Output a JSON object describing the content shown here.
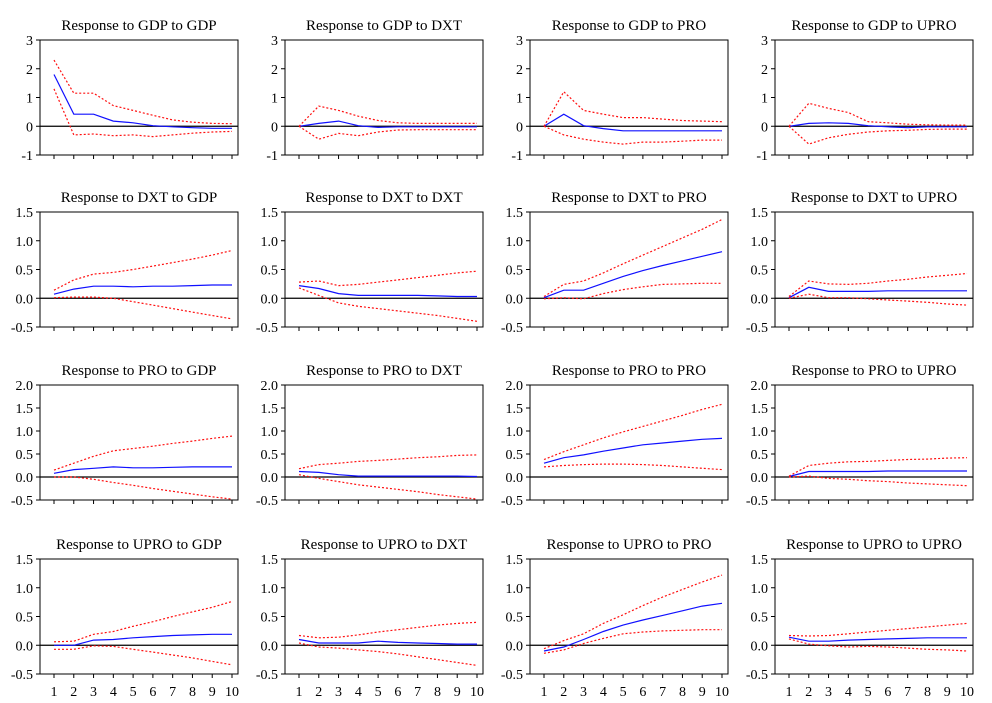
{
  "figure": {
    "rows": [
      {
        "ylim": [
          -1,
          3
        ],
        "yticks": [
          "-1",
          "0",
          "1",
          "2",
          "3"
        ],
        "ytick_values": [
          -1,
          0,
          1,
          2,
          3
        ]
      },
      {
        "ylim": [
          -0.5,
          1.5
        ],
        "yticks": [
          "-0.5",
          "0.0",
          "0.5",
          "1.0",
          "1.5"
        ],
        "ytick_values": [
          -0.5,
          0,
          0.5,
          1.0,
          1.5
        ]
      },
      {
        "ylim": [
          -0.5,
          2.0
        ],
        "yticks": [
          "-0.5",
          "0.0",
          "0.5",
          "1.0",
          "1.5",
          "2.0"
        ],
        "ytick_values": [
          -0.5,
          0,
          0.5,
          1.0,
          1.5,
          2.0
        ]
      },
      {
        "ylim": [
          -0.5,
          1.5
        ],
        "yticks": [
          "-0.5",
          "0.0",
          "0.5",
          "1.0",
          "1.5"
        ],
        "ytick_values": [
          -0.5,
          0,
          0.5,
          1.0,
          1.5
        ]
      }
    ],
    "xticks": [
      "1",
      "2",
      "3",
      "4",
      "5",
      "6",
      "7",
      "8",
      "9",
      "10"
    ],
    "colors": {
      "response": "#1010ff",
      "band": "#ff1010",
      "axis": "#000000"
    }
  },
  "chart_data": [
    {
      "type": "line",
      "title": "Response to GDP to GDP",
      "x": [
        1,
        2,
        3,
        4,
        5,
        6,
        7,
        8,
        9,
        10
      ],
      "xlim": [
        1,
        10
      ],
      "ylim": [
        -1,
        3
      ],
      "series": [
        {
          "values": [
            1.8,
            0.42,
            0.42,
            0.18,
            0.12,
            0.02,
            -0.02,
            -0.05,
            -0.07,
            -0.07
          ]
        },
        {
          "values": [
            2.3,
            1.15,
            1.15,
            0.72,
            0.55,
            0.38,
            0.22,
            0.14,
            0.1,
            0.09
          ]
        },
        {
          "values": [
            1.3,
            -0.3,
            -0.27,
            -0.33,
            -0.3,
            -0.36,
            -0.3,
            -0.24,
            -0.2,
            -0.18
          ]
        }
      ]
    },
    {
      "type": "line",
      "title": "Response to GDP to DXT",
      "x": [
        1,
        2,
        3,
        4,
        5,
        6,
        7,
        8,
        9,
        10
      ],
      "xlim": [
        1,
        10
      ],
      "ylim": [
        -1,
        3
      ],
      "series": [
        {
          "values": [
            0.0,
            0.1,
            0.18,
            0.02,
            -0.04,
            -0.02,
            -0.02,
            -0.02,
            -0.02,
            -0.02
          ]
        },
        {
          "values": [
            0.0,
            0.7,
            0.55,
            0.35,
            0.2,
            0.12,
            0.1,
            0.1,
            0.1,
            0.1
          ]
        },
        {
          "values": [
            0.0,
            -0.45,
            -0.25,
            -0.33,
            -0.2,
            -0.13,
            -0.12,
            -0.12,
            -0.12,
            -0.12
          ]
        }
      ]
    },
    {
      "type": "line",
      "title": "Response to GDP to PRO",
      "x": [
        1,
        2,
        3,
        4,
        5,
        6,
        7,
        8,
        9,
        10
      ],
      "xlim": [
        1,
        10
      ],
      "ylim": [
        -1,
        3
      ],
      "series": [
        {
          "values": [
            0.0,
            0.42,
            0.02,
            -0.08,
            -0.16,
            -0.16,
            -0.16,
            -0.16,
            -0.16,
            -0.16
          ]
        },
        {
          "values": [
            0.0,
            1.2,
            0.55,
            0.42,
            0.3,
            0.3,
            0.25,
            0.2,
            0.18,
            0.16
          ]
        },
        {
          "values": [
            0.0,
            -0.3,
            -0.45,
            -0.55,
            -0.62,
            -0.55,
            -0.55,
            -0.52,
            -0.48,
            -0.48
          ]
        }
      ]
    },
    {
      "type": "line",
      "title": "Response to GDP to UPRO",
      "x": [
        1,
        2,
        3,
        4,
        5,
        6,
        7,
        8,
        9,
        10
      ],
      "xlim": [
        1,
        10
      ],
      "ylim": [
        -1,
        3
      ],
      "series": [
        {
          "values": [
            0.0,
            0.1,
            0.12,
            0.1,
            0.02,
            -0.02,
            -0.05,
            -0.02,
            -0.02,
            -0.02
          ]
        },
        {
          "values": [
            0.0,
            0.8,
            0.62,
            0.48,
            0.16,
            0.12,
            0.07,
            0.05,
            0.04,
            0.04
          ]
        },
        {
          "values": [
            0.0,
            -0.62,
            -0.4,
            -0.28,
            -0.2,
            -0.16,
            -0.14,
            -0.11,
            -0.1,
            -0.1
          ]
        }
      ]
    },
    {
      "type": "line",
      "title": "Response to DXT to GDP",
      "x": [
        1,
        2,
        3,
        4,
        5,
        6,
        7,
        8,
        9,
        10
      ],
      "xlim": [
        1,
        10
      ],
      "ylim": [
        -0.5,
        1.5
      ],
      "series": [
        {
          "values": [
            0.07,
            0.16,
            0.21,
            0.21,
            0.2,
            0.21,
            0.21,
            0.22,
            0.23,
            0.23
          ]
        },
        {
          "values": [
            0.14,
            0.32,
            0.42,
            0.45,
            0.5,
            0.56,
            0.62,
            0.68,
            0.75,
            0.83
          ]
        },
        {
          "values": [
            0.01,
            0.02,
            0.02,
            0.0,
            -0.06,
            -0.12,
            -0.18,
            -0.24,
            -0.3,
            -0.36
          ]
        }
      ]
    },
    {
      "type": "line",
      "title": "Response to DXT to DXT",
      "x": [
        1,
        2,
        3,
        4,
        5,
        6,
        7,
        8,
        9,
        10
      ],
      "xlim": [
        1,
        10
      ],
      "ylim": [
        -0.5,
        1.5
      ],
      "series": [
        {
          "values": [
            0.22,
            0.17,
            0.08,
            0.05,
            0.05,
            0.05,
            0.05,
            0.04,
            0.03,
            0.03
          ]
        },
        {
          "values": [
            0.28,
            0.3,
            0.22,
            0.24,
            0.28,
            0.32,
            0.36,
            0.4,
            0.44,
            0.47
          ]
        },
        {
          "values": [
            0.18,
            0.05,
            -0.08,
            -0.14,
            -0.18,
            -0.22,
            -0.26,
            -0.3,
            -0.35,
            -0.4
          ]
        }
      ]
    },
    {
      "type": "line",
      "title": "Response to DXT to PRO",
      "x": [
        1,
        2,
        3,
        4,
        5,
        6,
        7,
        8,
        9,
        10
      ],
      "xlim": [
        1,
        10
      ],
      "ylim": [
        -0.5,
        1.5
      ],
      "series": [
        {
          "values": [
            0.01,
            0.14,
            0.14,
            0.26,
            0.38,
            0.48,
            0.57,
            0.65,
            0.73,
            0.81
          ]
        },
        {
          "values": [
            0.03,
            0.24,
            0.3,
            0.44,
            0.6,
            0.75,
            0.9,
            1.05,
            1.2,
            1.37
          ]
        },
        {
          "values": [
            -0.01,
            0.01,
            -0.01,
            0.08,
            0.15,
            0.2,
            0.24,
            0.25,
            0.26,
            0.26
          ]
        }
      ]
    },
    {
      "type": "line",
      "title": "Response to DXT to UPRO",
      "x": [
        1,
        2,
        3,
        4,
        5,
        6,
        7,
        8,
        9,
        10
      ],
      "xlim": [
        1,
        10
      ],
      "ylim": [
        -0.5,
        1.5
      ],
      "series": [
        {
          "values": [
            0.01,
            0.19,
            0.12,
            0.12,
            0.12,
            0.13,
            0.13,
            0.13,
            0.13,
            0.13
          ]
        },
        {
          "values": [
            0.03,
            0.3,
            0.25,
            0.24,
            0.26,
            0.3,
            0.33,
            0.37,
            0.4,
            0.43
          ]
        },
        {
          "values": [
            0.0,
            0.07,
            0.01,
            0.01,
            -0.01,
            -0.03,
            -0.05,
            -0.07,
            -0.1,
            -0.12
          ]
        }
      ]
    },
    {
      "type": "line",
      "title": "Response to PRO to GDP",
      "x": [
        1,
        2,
        3,
        4,
        5,
        6,
        7,
        8,
        9,
        10
      ],
      "xlim": [
        1,
        10
      ],
      "ylim": [
        -0.5,
        2.0
      ],
      "series": [
        {
          "values": [
            0.08,
            0.16,
            0.19,
            0.22,
            0.2,
            0.2,
            0.21,
            0.22,
            0.22,
            0.22
          ]
        },
        {
          "values": [
            0.15,
            0.3,
            0.45,
            0.57,
            0.62,
            0.67,
            0.73,
            0.78,
            0.84,
            0.89
          ]
        },
        {
          "values": [
            0.0,
            0.0,
            -0.05,
            -0.12,
            -0.18,
            -0.25,
            -0.31,
            -0.37,
            -0.43,
            -0.48
          ]
        }
      ]
    },
    {
      "type": "line",
      "title": "Response to PRO to DXT",
      "x": [
        1,
        2,
        3,
        4,
        5,
        6,
        7,
        8,
        9,
        10
      ],
      "xlim": [
        1,
        10
      ],
      "ylim": [
        -0.5,
        2.0
      ],
      "series": [
        {
          "values": [
            0.12,
            0.1,
            0.05,
            0.02,
            0.02,
            0.02,
            0.02,
            0.02,
            0.02,
            0.01
          ]
        },
        {
          "values": [
            0.18,
            0.27,
            0.3,
            0.34,
            0.36,
            0.39,
            0.42,
            0.44,
            0.47,
            0.48
          ]
        },
        {
          "values": [
            0.05,
            -0.03,
            -0.1,
            -0.17,
            -0.22,
            -0.27,
            -0.32,
            -0.38,
            -0.43,
            -0.48
          ]
        }
      ]
    },
    {
      "type": "line",
      "title": "Response to PRO to PRO",
      "x": [
        1,
        2,
        3,
        4,
        5,
        6,
        7,
        8,
        9,
        10
      ],
      "xlim": [
        1,
        10
      ],
      "ylim": [
        -0.5,
        2.0
      ],
      "series": [
        {
          "values": [
            0.3,
            0.42,
            0.48,
            0.56,
            0.63,
            0.7,
            0.74,
            0.78,
            0.82,
            0.84
          ]
        },
        {
          "values": [
            0.38,
            0.55,
            0.7,
            0.85,
            0.98,
            1.1,
            1.22,
            1.34,
            1.47,
            1.58
          ]
        },
        {
          "values": [
            0.22,
            0.25,
            0.27,
            0.28,
            0.28,
            0.27,
            0.25,
            0.22,
            0.19,
            0.16
          ]
        }
      ]
    },
    {
      "type": "line",
      "title": "Response to PRO to UPRO",
      "x": [
        1,
        2,
        3,
        4,
        5,
        6,
        7,
        8,
        9,
        10
      ],
      "xlim": [
        1,
        10
      ],
      "ylim": [
        -0.5,
        2.0
      ],
      "series": [
        {
          "values": [
            0.01,
            0.12,
            0.12,
            0.12,
            0.12,
            0.13,
            0.13,
            0.13,
            0.13,
            0.13
          ]
        },
        {
          "values": [
            0.02,
            0.25,
            0.3,
            0.33,
            0.34,
            0.36,
            0.38,
            0.39,
            0.41,
            0.42
          ]
        },
        {
          "values": [
            0.0,
            0.02,
            -0.03,
            -0.05,
            -0.08,
            -0.1,
            -0.13,
            -0.15,
            -0.17,
            -0.19
          ]
        }
      ]
    },
    {
      "type": "line",
      "title": "Response to UPRO to GDP",
      "x": [
        1,
        2,
        3,
        4,
        5,
        6,
        7,
        8,
        9,
        10
      ],
      "xlim": [
        1,
        10
      ],
      "ylim": [
        -0.5,
        1.5
      ],
      "series": [
        {
          "values": [
            0.0,
            0.0,
            0.09,
            0.1,
            0.13,
            0.15,
            0.17,
            0.18,
            0.19,
            0.19
          ]
        },
        {
          "values": [
            0.06,
            0.07,
            0.19,
            0.24,
            0.33,
            0.41,
            0.5,
            0.58,
            0.66,
            0.76
          ]
        },
        {
          "values": [
            -0.07,
            -0.07,
            -0.01,
            -0.02,
            -0.07,
            -0.12,
            -0.17,
            -0.22,
            -0.28,
            -0.34
          ]
        }
      ]
    },
    {
      "type": "line",
      "title": "Response to UPRO to DXT",
      "x": [
        1,
        2,
        3,
        4,
        5,
        6,
        7,
        8,
        9,
        10
      ],
      "xlim": [
        1,
        10
      ],
      "ylim": [
        -0.5,
        1.5
      ],
      "series": [
        {
          "values": [
            0.1,
            0.04,
            0.04,
            0.04,
            0.07,
            0.05,
            0.04,
            0.03,
            0.02,
            0.02
          ]
        },
        {
          "values": [
            0.17,
            0.13,
            0.14,
            0.18,
            0.23,
            0.27,
            0.31,
            0.35,
            0.38,
            0.4
          ]
        },
        {
          "values": [
            0.04,
            -0.03,
            -0.05,
            -0.08,
            -0.11,
            -0.15,
            -0.2,
            -0.25,
            -0.3,
            -0.35
          ]
        }
      ]
    },
    {
      "type": "line",
      "title": "Response to UPRO to PRO",
      "x": [
        1,
        2,
        3,
        4,
        5,
        6,
        7,
        8,
        9,
        10
      ],
      "xlim": [
        1,
        10
      ],
      "ylim": [
        -0.5,
        1.5
      ],
      "series": [
        {
          "values": [
            -0.1,
            -0.03,
            0.1,
            0.24,
            0.35,
            0.44,
            0.52,
            0.6,
            0.68,
            0.73
          ]
        },
        {
          "values": [
            -0.06,
            0.08,
            0.2,
            0.38,
            0.53,
            0.69,
            0.84,
            0.97,
            1.1,
            1.22
          ]
        },
        {
          "values": [
            -0.14,
            -0.08,
            0.03,
            0.12,
            0.2,
            0.23,
            0.25,
            0.26,
            0.27,
            0.27
          ]
        }
      ]
    },
    {
      "type": "line",
      "title": "Response to UPRO to UPRO",
      "x": [
        1,
        2,
        3,
        4,
        5,
        6,
        7,
        8,
        9,
        10
      ],
      "xlim": [
        1,
        10
      ],
      "ylim": [
        -0.5,
        1.5
      ],
      "series": [
        {
          "values": [
            0.14,
            0.07,
            0.07,
            0.09,
            0.1,
            0.11,
            0.12,
            0.13,
            0.13,
            0.13
          ]
        },
        {
          "values": [
            0.17,
            0.16,
            0.17,
            0.2,
            0.23,
            0.26,
            0.29,
            0.32,
            0.35,
            0.38
          ]
        },
        {
          "values": [
            0.11,
            0.02,
            -0.01,
            -0.03,
            -0.02,
            -0.03,
            -0.05,
            -0.07,
            -0.08,
            -0.1
          ]
        }
      ]
    }
  ]
}
